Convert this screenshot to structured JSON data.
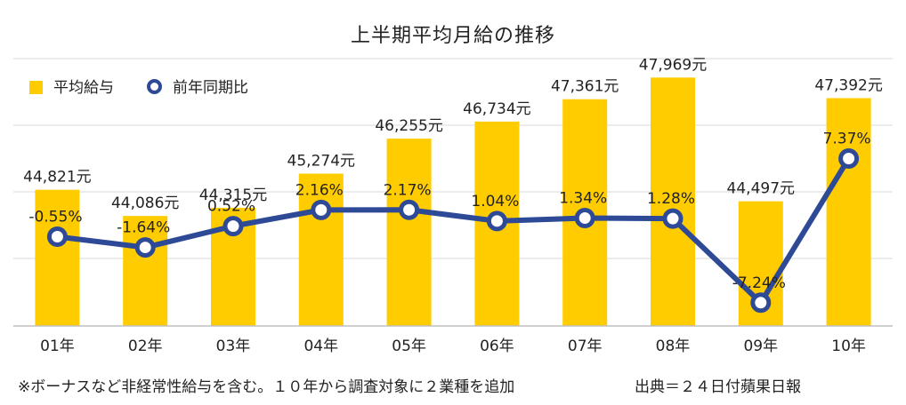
{
  "footnote": "※ボーナスなど非経常性給与を含む。１０年から調査対象に２業種を追加",
  "source": "出典＝２４日付蘋果日報",
  "colors": {
    "bar": "#FFCC00",
    "line": "#2E4A96",
    "grid": "#D9D9D9",
    "axis": "#BFBFBF"
  },
  "chart_data": {
    "type": "bar",
    "title": "上半期平均月給の推移",
    "categories": [
      "01年",
      "02年",
      "03年",
      "04年",
      "05年",
      "06年",
      "07年",
      "08年",
      "09年",
      "10年"
    ],
    "series": [
      {
        "name": "平均給与",
        "type": "bar",
        "axis": "left",
        "values": [
          44821,
          44086,
          44315,
          45274,
          46255,
          46734,
          47361,
          47969,
          44497,
          47392
        ],
        "labels": [
          "44,821元",
          "44,086元",
          "44,315元",
          "45,274元",
          "46,255元",
          "46,734元",
          "47,361元",
          "47,969元",
          "44,497元",
          "47,392元"
        ]
      },
      {
        "name": "前年同期比",
        "type": "line",
        "axis": "right",
        "values": [
          -0.55,
          -1.64,
          0.52,
          2.16,
          2.17,
          1.04,
          1.34,
          1.28,
          -7.24,
          7.37
        ],
        "labels": [
          "-0.55%",
          "-1.64%",
          "0.52%",
          "2.16%",
          "2.17%",
          "1.04%",
          "1.34%",
          "1.28%",
          "-7.24%",
          "7.37%"
        ]
      }
    ],
    "ylim_left": [
      41000,
      48500
    ],
    "ylim_right": [
      -9.6,
      17.5
    ],
    "grid": true,
    "legend": "top-left"
  }
}
